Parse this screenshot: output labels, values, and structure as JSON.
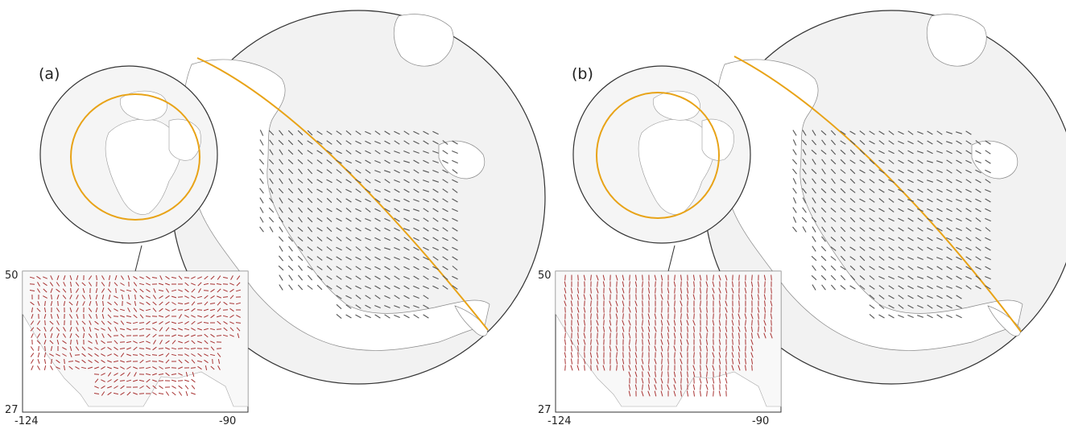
{
  "panels": [
    {
      "id": "a",
      "label": "(a)",
      "inset_axes": {
        "x_ticks": [
          "-124",
          "-90"
        ],
        "y_ticks": [
          "50",
          "27"
        ]
      },
      "colors": {
        "orbit": "#e8a317",
        "large_ticks": "#555555",
        "inset_ticks": "#a83232"
      },
      "field_pattern": "mixed"
    },
    {
      "id": "b",
      "label": "(b)",
      "inset_axes": {
        "x_ticks": [
          "-124",
          "-90"
        ],
        "y_ticks": [
          "50",
          "27"
        ]
      },
      "colors": {
        "orbit": "#e8a317",
        "large_ticks": "#555555",
        "inset_ticks": "#a83232"
      },
      "field_pattern": "aligned"
    }
  ]
}
